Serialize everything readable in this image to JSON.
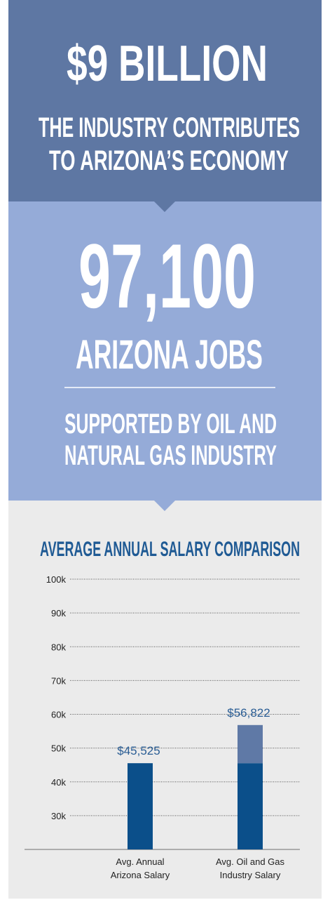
{
  "banner": {
    "amount": "$9 BILLION",
    "lines": [
      "THE INDUSTRY CONTRIBUTES",
      "TO ARIZONA’S ECONOMY"
    ]
  },
  "jobs": {
    "count": "97,100",
    "label": "ARIZONA JOBS",
    "lines": [
      "SUPPORTED BY OIL AND",
      "NATURAL GAS INDUSTRY"
    ]
  },
  "chart_data": {
    "type": "bar",
    "title": "AVERAGE ANNUAL SALARY COMPARISON",
    "categories": [
      "Avg. Annual\nArizona Salary",
      "Avg. Oil and Gas\nIndustry Salary"
    ],
    "values": [
      45525,
      56822
    ],
    "value_labels": [
      "$45,525",
      "$56,822"
    ],
    "colors": [
      "#0b4f8a",
      "#5f79a6"
    ],
    "ylim": [
      20000,
      100000
    ],
    "yticks": [
      {
        "value": 30000,
        "label": "30k"
      },
      {
        "value": 40000,
        "label": "40k"
      },
      {
        "value": 50000,
        "label": "50k"
      },
      {
        "value": 60000,
        "label": "60k"
      },
      {
        "value": 70000,
        "label": "70k"
      },
      {
        "value": 80000,
        "label": "80k"
      },
      {
        "value": 90000,
        "label": "90k"
      },
      {
        "value": 100000,
        "label": "100k"
      }
    ],
    "grid": true
  }
}
